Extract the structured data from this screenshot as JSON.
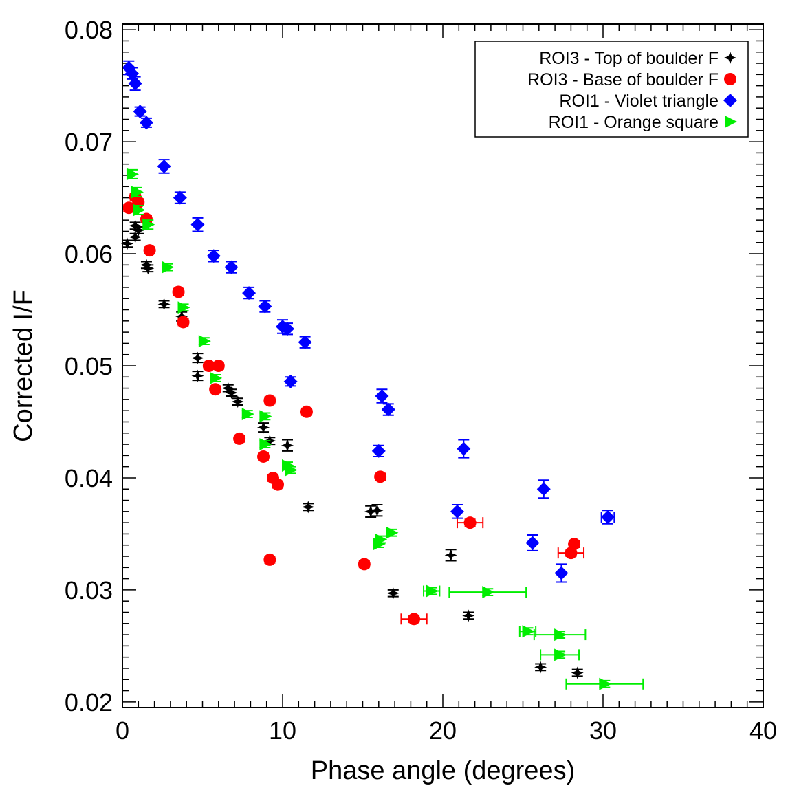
{
  "chart_data": {
    "type": "scatter",
    "title": "",
    "xlabel": "Phase angle (degrees)",
    "ylabel": "Corrected I/F",
    "xlim": [
      0,
      40
    ],
    "ylim": [
      0.0195,
      0.0805
    ],
    "xticks": [
      0,
      10,
      20,
      30,
      40
    ],
    "xtick_labels": [
      "0",
      "10",
      "20",
      "30",
      "40"
    ],
    "yticks": [
      0.02,
      0.03,
      0.04,
      0.05,
      0.06,
      0.07,
      0.08
    ],
    "ytick_labels": [
      "0.02",
      "0.03",
      "0.04",
      "0.05",
      "0.06",
      "0.07",
      "0.08"
    ],
    "grid": false,
    "legend_position": "top-right",
    "series": [
      {
        "name": "ROI3 - Top of boulder F",
        "marker": "star4",
        "color": "#000000",
        "points": [
          [
            0.3,
            0.0609,
            0,
            0.0003
          ],
          [
            0.8,
            0.0615,
            0,
            0.0003
          ],
          [
            0.8,
            0.0625,
            0,
            0.0003
          ],
          [
            1.0,
            0.0621,
            0,
            0.0003
          ],
          [
            1.5,
            0.059,
            0,
            0.0003
          ],
          [
            1.6,
            0.0587,
            0,
            0.0003
          ],
          [
            2.6,
            0.0555,
            0,
            0.0003
          ],
          [
            3.7,
            0.0544,
            0,
            0.0004
          ],
          [
            4.7,
            0.0507,
            0,
            0.0004
          ],
          [
            4.7,
            0.0491,
            0,
            0.0004
          ],
          [
            6.6,
            0.048,
            0,
            0.0003
          ],
          [
            6.8,
            0.0476,
            0,
            0.0003
          ],
          [
            7.2,
            0.0468,
            0,
            0.0003
          ],
          [
            8.8,
            0.0445,
            0,
            0.0004
          ],
          [
            9.2,
            0.0433,
            0,
            0.0003
          ],
          [
            10.3,
            0.0429,
            0,
            0.0005
          ],
          [
            11.6,
            0.0374,
            0,
            0.0003
          ],
          [
            15.5,
            0.037,
            0,
            0.0005
          ],
          [
            15.9,
            0.0371,
            0,
            0.0005
          ],
          [
            16.9,
            0.0297,
            0,
            0.0003
          ],
          [
            20.5,
            0.0331,
            0,
            0.0005
          ],
          [
            21.6,
            0.0277,
            0,
            0.0003
          ],
          [
            26.1,
            0.0231,
            0,
            0.0003
          ],
          [
            28.4,
            0.0226,
            0,
            0.0003
          ]
        ]
      },
      {
        "name": "ROI3 - Base of boulder F",
        "marker": "circle",
        "color": "#ff0000",
        "points": [
          [
            0.4,
            0.0641,
            0,
            0.0003
          ],
          [
            0.8,
            0.0651,
            0,
            0.0003
          ],
          [
            1.0,
            0.0646,
            0,
            0.0003
          ],
          [
            1.5,
            0.0631,
            0,
            0.0003
          ],
          [
            1.7,
            0.0603,
            0,
            0.0003
          ],
          [
            3.5,
            0.0566,
            0,
            0.0003
          ],
          [
            3.8,
            0.0539,
            0,
            0.0003
          ],
          [
            5.4,
            0.05,
            0,
            0.0003
          ],
          [
            6.0,
            0.05,
            0,
            0.0003
          ],
          [
            5.8,
            0.0479,
            0,
            0.0003
          ],
          [
            7.3,
            0.0435,
            0,
            0.0003
          ],
          [
            9.2,
            0.0469,
            0,
            0.0003
          ],
          [
            8.8,
            0.0419,
            0,
            0.0003
          ],
          [
            9.4,
            0.04,
            0,
            0.0003
          ],
          [
            9.7,
            0.0394,
            0,
            0.0003
          ],
          [
            11.5,
            0.0459,
            0,
            0.0003
          ],
          [
            9.2,
            0.0327,
            0,
            0.0003
          ],
          [
            15.1,
            0.0323,
            0,
            0.0003
          ],
          [
            16.1,
            0.0401,
            0,
            0.0003
          ],
          [
            18.2,
            0.0274,
            0.8,
            0.0003
          ],
          [
            21.7,
            0.036,
            0.8,
            0.0003
          ],
          [
            28.0,
            0.0333,
            0.8,
            0.0003
          ],
          [
            28.2,
            0.0341,
            0,
            0.0003
          ]
        ]
      },
      {
        "name": "ROI1 - Violet triangle",
        "marker": "diamond",
        "color": "#0000ff",
        "points": [
          [
            0.4,
            0.0766,
            0,
            0.0006
          ],
          [
            0.6,
            0.0761,
            0,
            0.0005
          ],
          [
            0.8,
            0.0752,
            0,
            0.0006
          ],
          [
            1.1,
            0.0727,
            0,
            0.0004
          ],
          [
            1.5,
            0.0717,
            0,
            0.0004
          ],
          [
            2.6,
            0.0678,
            0,
            0.0006
          ],
          [
            3.6,
            0.065,
            0,
            0.0005
          ],
          [
            4.7,
            0.0626,
            0,
            0.0006
          ],
          [
            5.7,
            0.0598,
            0,
            0.0005
          ],
          [
            6.8,
            0.0588,
            0,
            0.0005
          ],
          [
            7.9,
            0.0565,
            0,
            0.0005
          ],
          [
            8.9,
            0.0553,
            0,
            0.0005
          ],
          [
            10.0,
            0.0535,
            0,
            0.0006
          ],
          [
            10.3,
            0.0533,
            0,
            0.0005
          ],
          [
            11.4,
            0.0521,
            0,
            0.0005
          ],
          [
            10.5,
            0.0486,
            0,
            0.0004
          ],
          [
            16.2,
            0.0473,
            0,
            0.0006
          ],
          [
            16.6,
            0.0461,
            0,
            0.0005
          ],
          [
            16.0,
            0.0424,
            0,
            0.0005
          ],
          [
            21.3,
            0.0426,
            0,
            0.0008
          ],
          [
            20.9,
            0.037,
            0,
            0.0006
          ],
          [
            26.3,
            0.039,
            0,
            0.0008
          ],
          [
            25.6,
            0.0342,
            0,
            0.0007
          ],
          [
            27.4,
            0.0315,
            0,
            0.0008
          ],
          [
            30.3,
            0.0365,
            0.4,
            0.0006
          ]
        ]
      },
      {
        "name": "ROI1 - Orange square",
        "marker": "triangle-right",
        "color": "#00ee00",
        "points": [
          [
            0.6,
            0.0671,
            0,
            0.0004
          ],
          [
            0.9,
            0.0655,
            0,
            0.0004
          ],
          [
            1.0,
            0.0639,
            0,
            0.0004
          ],
          [
            1.6,
            0.0626,
            0,
            0.0004
          ],
          [
            2.8,
            0.0588,
            0,
            0.0003
          ],
          [
            3.8,
            0.0552,
            0,
            0.0003
          ],
          [
            5.1,
            0.0522,
            0,
            0.0003
          ],
          [
            5.8,
            0.0489,
            0,
            0.0003
          ],
          [
            7.8,
            0.0457,
            0,
            0.0003
          ],
          [
            8.9,
            0.0455,
            0,
            0.0003
          ],
          [
            8.9,
            0.043,
            0,
            0.0003
          ],
          [
            10.3,
            0.0411,
            0,
            0.0003
          ],
          [
            10.5,
            0.0407,
            0,
            0.0003
          ],
          [
            16.8,
            0.0351,
            0,
            0.0003
          ],
          [
            16.0,
            0.0341,
            0,
            0.0003
          ],
          [
            16.1,
            0.0345,
            0,
            0.0003
          ],
          [
            19.3,
            0.0299,
            0.5,
            0.0003
          ],
          [
            22.8,
            0.0298,
            2.4,
            0.0003
          ],
          [
            25.3,
            0.0263,
            0.5,
            0.0003
          ],
          [
            27.3,
            0.026,
            1.6,
            0.0003
          ],
          [
            27.3,
            0.0242,
            1.2,
            0.0003
          ],
          [
            30.1,
            0.0216,
            2.4,
            0.0003
          ]
        ]
      }
    ]
  }
}
